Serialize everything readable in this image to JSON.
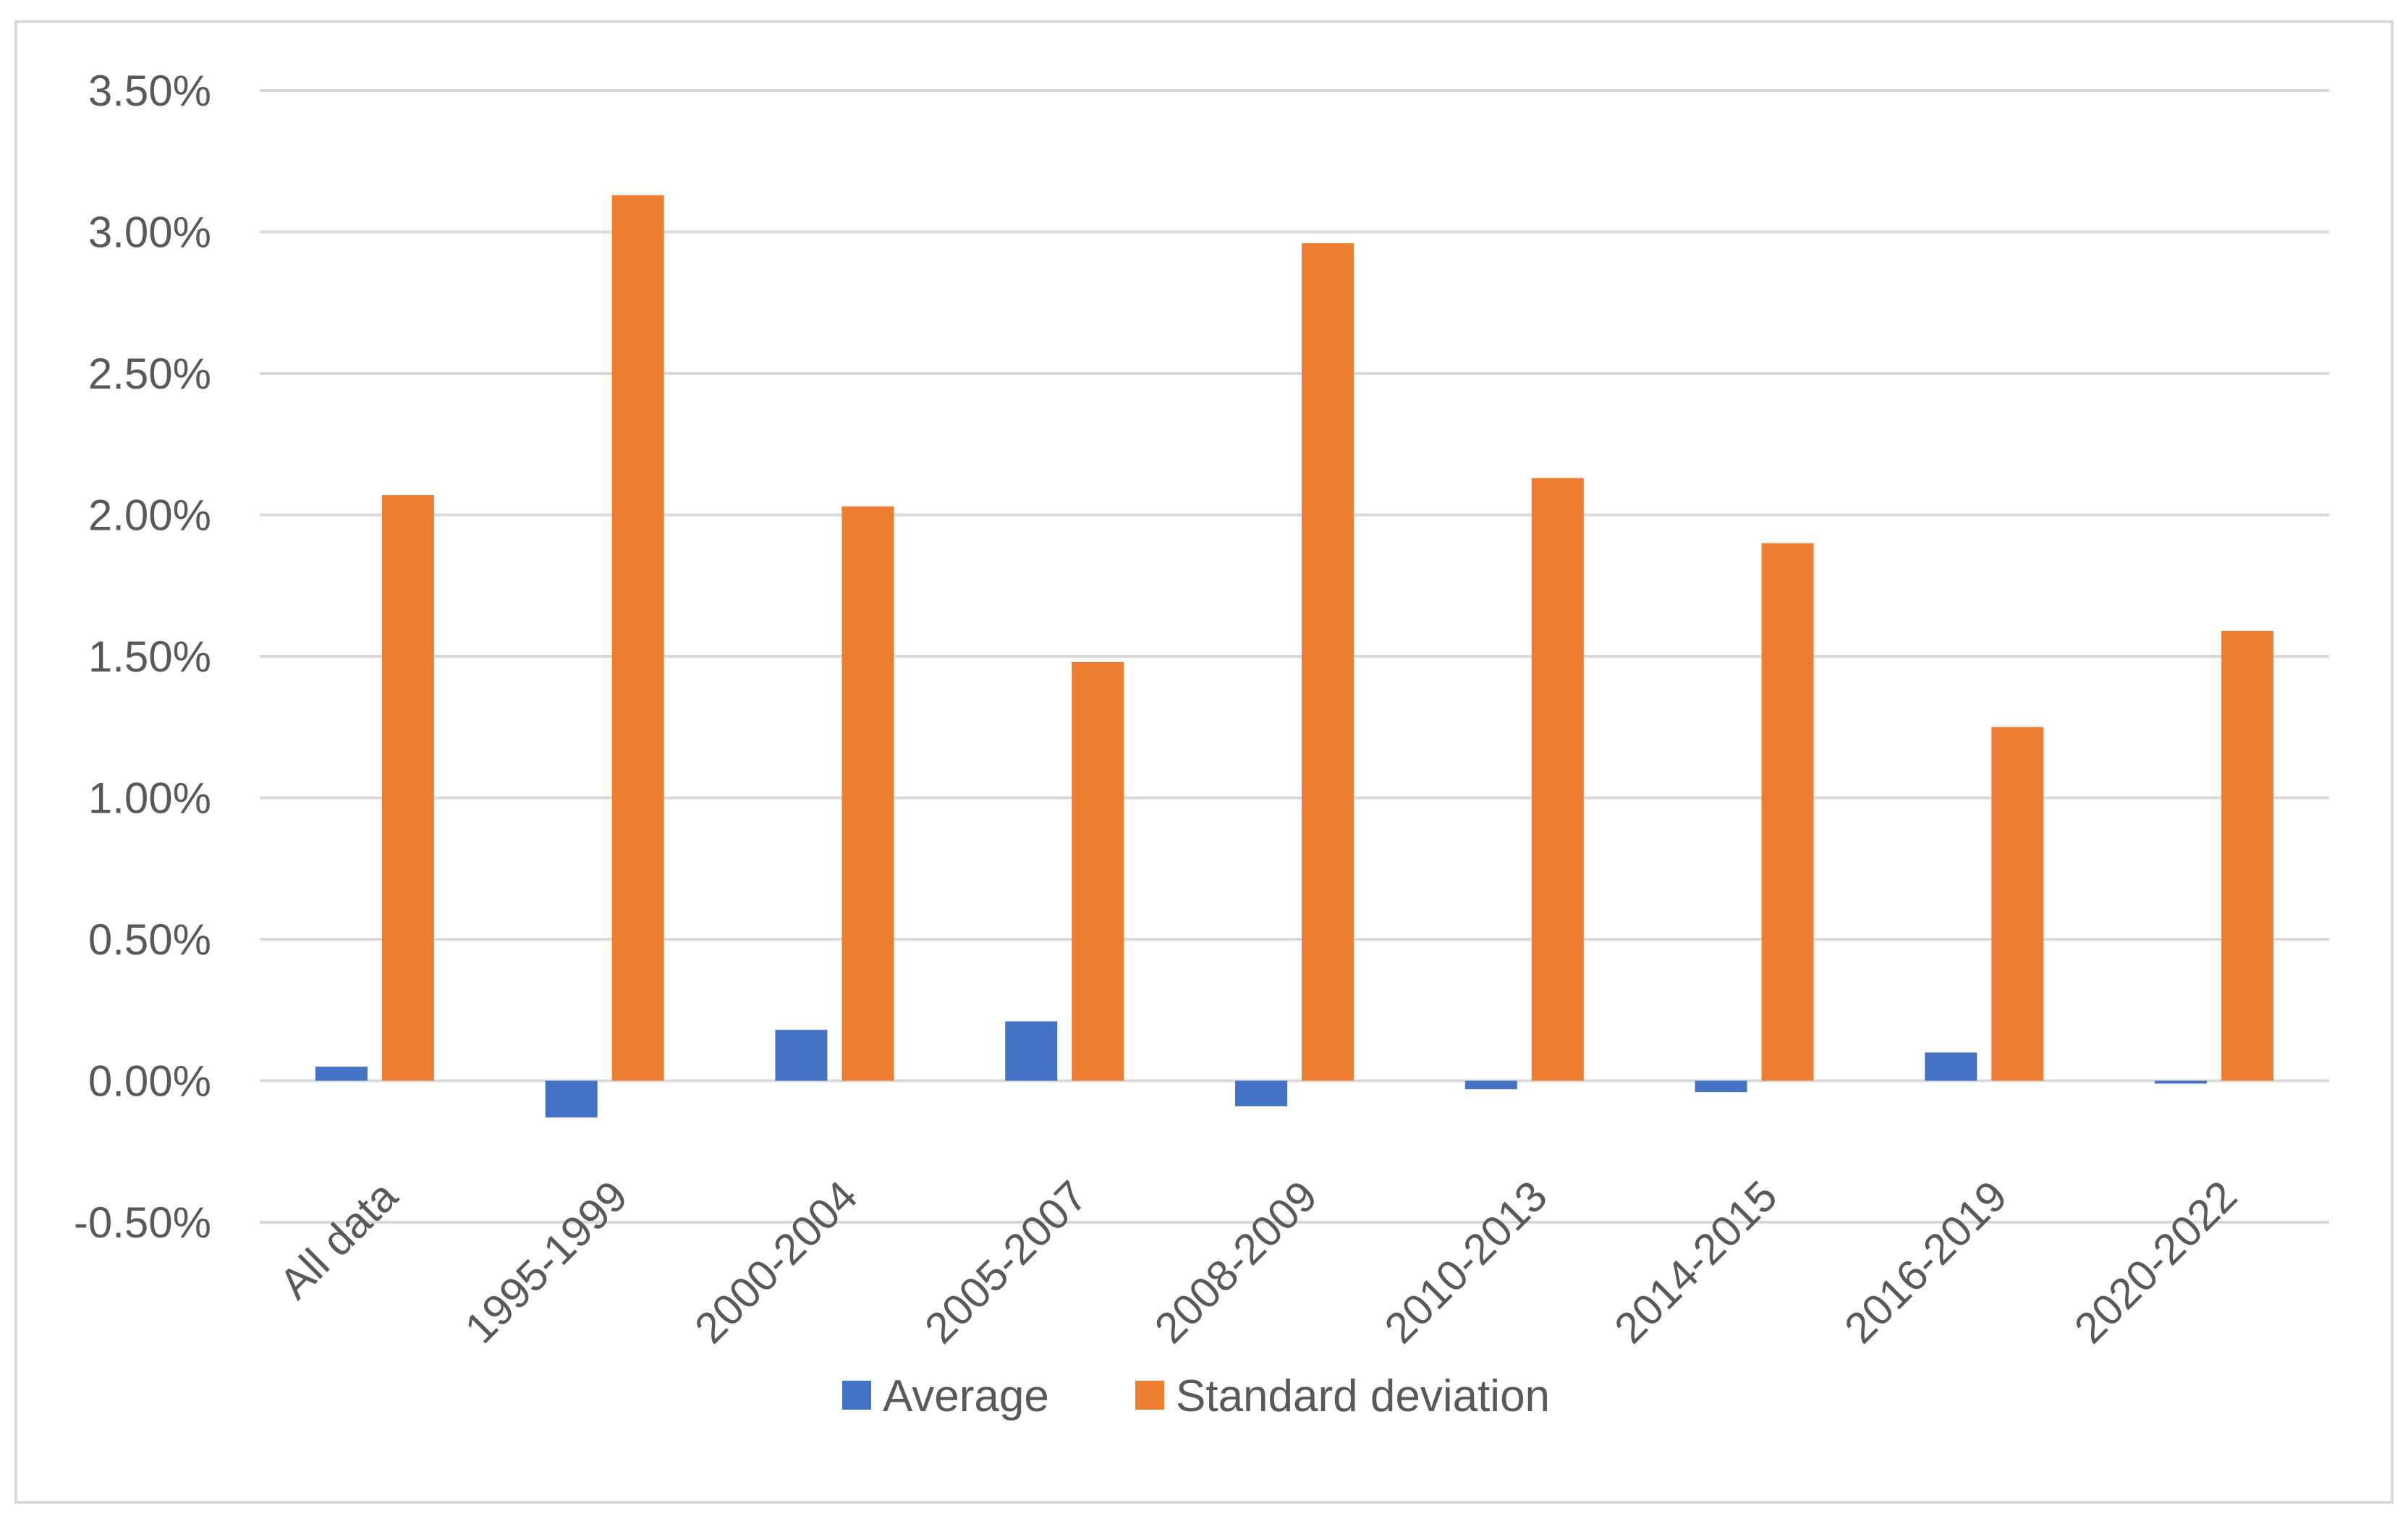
{
  "chart_data": {
    "type": "bar",
    "title": "",
    "xlabel": "",
    "ylabel": "",
    "categories": [
      "All data",
      "1995-1999",
      "2000-2004",
      "2005-2007",
      "2008-2009",
      "2010-2013",
      "2014-2015",
      "2016-2019",
      "2020-2022"
    ],
    "series": [
      {
        "name": "Average",
        "color": "#4472c4",
        "values": [
          0.05,
          -0.13,
          0.18,
          0.21,
          -0.09,
          -0.03,
          -0.04,
          0.1,
          -0.01
        ]
      },
      {
        "name": "Standard deviation",
        "color": "#ed7d31",
        "values": [
          2.07,
          3.13,
          2.03,
          1.48,
          2.96,
          2.13,
          1.9,
          1.25,
          1.59
        ]
      }
    ],
    "ylim": [
      -0.5,
      3.5
    ],
    "ytick_labels": [
      "3.50%",
      "3.00%",
      "2.50%",
      "2.00%",
      "1.50%",
      "1.00%",
      "0.50%",
      "0.00%",
      "-0.50%"
    ],
    "grid": true,
    "legend_position": "bottom"
  }
}
